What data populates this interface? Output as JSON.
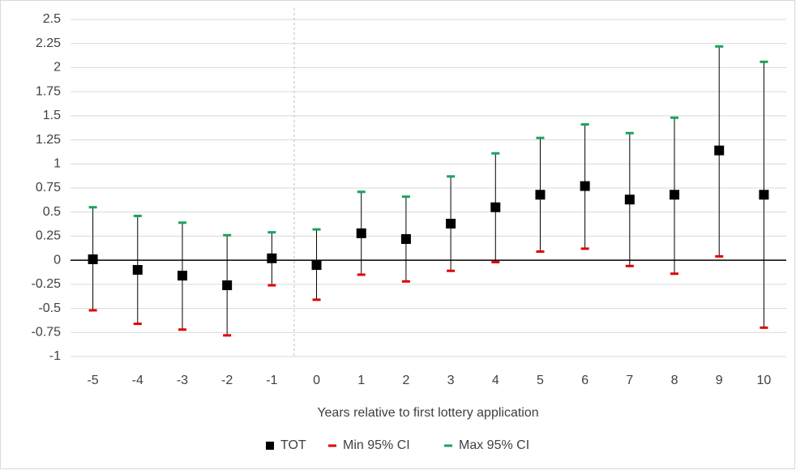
{
  "chart_data": {
    "type": "errorbar",
    "x_label": "Years relative to first lottery application",
    "categories": [
      "-5",
      "-4",
      "-3",
      "-2",
      "-1",
      "0",
      "1",
      "2",
      "3",
      "4",
      "5",
      "6",
      "7",
      "8",
      "9",
      "10"
    ],
    "series": [
      {
        "name": "TOT",
        "color": "#000000",
        "values": [
          0.01,
          -0.1,
          -0.16,
          -0.26,
          0.02,
          -0.05,
          0.28,
          0.22,
          0.38,
          0.55,
          0.68,
          0.77,
          0.63,
          0.68,
          1.14,
          0.68
        ]
      },
      {
        "name": "Min 95% CI",
        "color": "#e00000",
        "values": [
          -0.52,
          -0.66,
          -0.72,
          -0.78,
          -0.26,
          -0.41,
          -0.15,
          -0.22,
          -0.11,
          -0.02,
          0.09,
          0.12,
          -0.06,
          -0.14,
          0.04,
          -0.7
        ]
      },
      {
        "name": "Max 95% CI",
        "color": "#1aa35a",
        "values": [
          0.55,
          0.46,
          0.39,
          0.26,
          0.29,
          0.32,
          0.71,
          0.66,
          0.87,
          1.11,
          1.27,
          1.41,
          1.32,
          1.48,
          2.22,
          2.06
        ]
      }
    ],
    "ylim": [
      -1,
      2.5
    ],
    "yticks": [
      -1,
      -0.75,
      -0.5,
      -0.25,
      0,
      0.25,
      0.5,
      0.75,
      1,
      1.25,
      1.5,
      1.75,
      2,
      2.25,
      2.5
    ],
    "grid": true
  }
}
